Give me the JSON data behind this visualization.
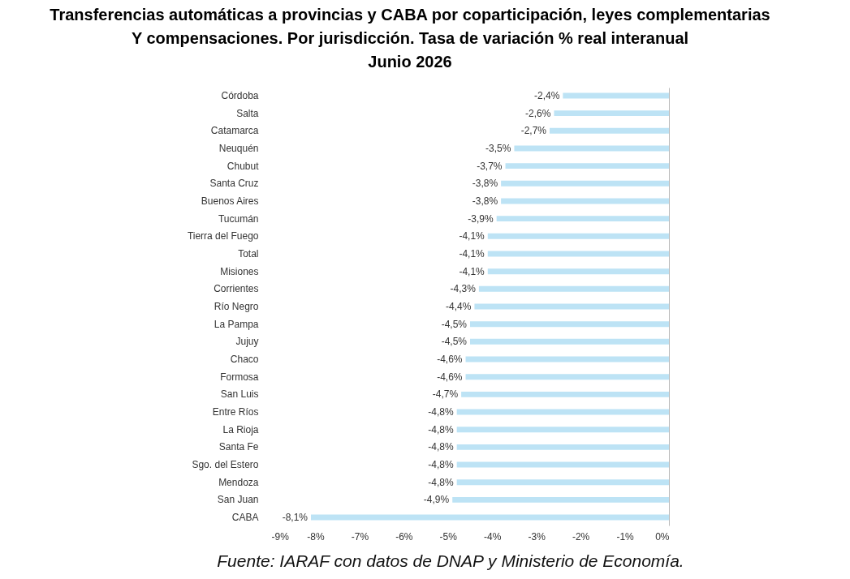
{
  "chart_data": {
    "type": "bar",
    "orientation": "horizontal",
    "title": "Transferencias automáticas a provincias y CABA por coparticipación, leyes complementarias\nY compensaciones. Por jurisdicción. Tasa de variación % real interanual\nJunio 2026",
    "categories": [
      "Córdoba",
      "Salta",
      "Catamarca",
      "Neuquén",
      "Chubut",
      "Santa Cruz",
      "Buenos Aires",
      "Tucumán",
      "Tierra del Fuego",
      "Total",
      "Misiones",
      "Corrientes",
      "Río Negro",
      "La Pampa",
      "Jujuy",
      "Chaco",
      "Formosa",
      "San Luis",
      "Entre Ríos",
      "La Rioja",
      "Santa Fe",
      "Sgo. del Estero",
      "Mendoza",
      "San Juan",
      "CABA"
    ],
    "values": [
      -2.4,
      -2.6,
      -2.7,
      -3.5,
      -3.7,
      -3.8,
      -3.8,
      -3.9,
      -4.1,
      -4.1,
      -4.1,
      -4.3,
      -4.4,
      -4.5,
      -4.5,
      -4.6,
      -4.6,
      -4.7,
      -4.8,
      -4.8,
      -4.8,
      -4.8,
      -4.8,
      -4.9,
      -8.1
    ],
    "value_labels": [
      "-2,4%",
      "-2,6%",
      "-2,7%",
      "-3,5%",
      "-3,7%",
      "-3,8%",
      "-3,8%",
      "-3,9%",
      "-4,1%",
      "-4,1%",
      "-4,1%",
      "-4,3%",
      "-4,4%",
      "-4,5%",
      "-4,5%",
      "-4,6%",
      "-4,6%",
      "-4,7%",
      "-4,8%",
      "-4,8%",
      "-4,8%",
      "-4,8%",
      "-4,8%",
      "-4,9%",
      "-8,1%"
    ],
    "color": "#bde3f5",
    "xlim": [
      -9,
      0
    ],
    "xticks": [
      {
        "value": -9,
        "label": "-9%"
      },
      {
        "value": -8,
        "label": "-8%"
      },
      {
        "value": -7,
        "label": "-7%"
      },
      {
        "value": -6,
        "label": "-6%"
      },
      {
        "value": -5,
        "label": "-5%"
      },
      {
        "value": -4,
        "label": "-4%"
      },
      {
        "value": -3,
        "label": "-3%"
      },
      {
        "value": -2,
        "label": "-2%"
      },
      {
        "value": -1,
        "label": "-1%"
      },
      {
        "value": 0,
        "label": "0%"
      }
    ],
    "grid": false,
    "annotations": [
      "Fuente: IARAF con datos de DNAP y Ministerio de Economía."
    ]
  }
}
